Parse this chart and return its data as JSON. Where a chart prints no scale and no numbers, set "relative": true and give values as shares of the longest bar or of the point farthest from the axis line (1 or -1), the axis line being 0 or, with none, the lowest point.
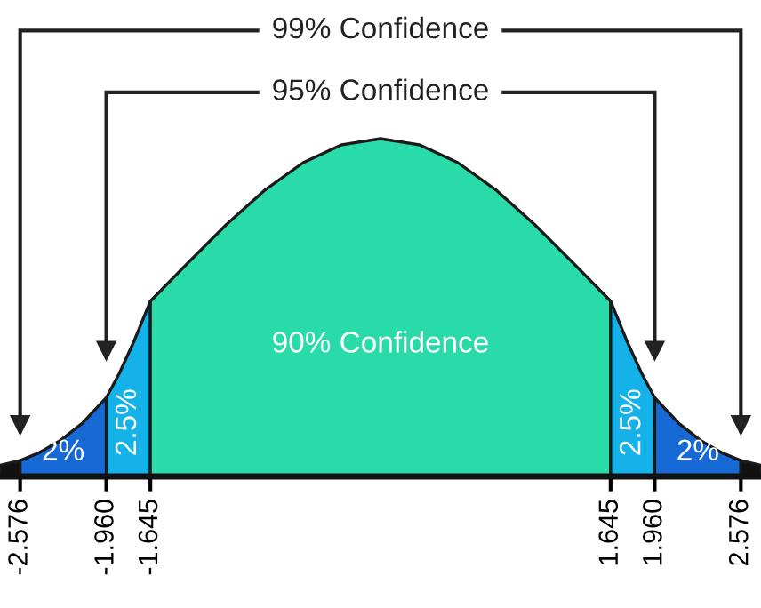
{
  "chart_data": {
    "type": "area",
    "relative": true,
    "xlim": [
      -2.72,
      2.72
    ],
    "xticks": [
      -2.576,
      {
        "value": -1.96,
        "label": "-1.960"
      },
      -1.645,
      1.645,
      {
        "value": 1.96,
        "label": "1.960"
      },
      2.576
    ],
    "tick_labels": "x",
    "grid": false,
    "legend": false,
    "series": [
      {
        "color": "#111111",
        "x": [
          -2.72,
          -2.576
        ],
        "values": [
          0.033,
          0.047
        ]
      },
      {
        "color": "#1769d6",
        "x": [
          -2.576,
          -2.441,
          -2.287,
          -2.133,
          -1.96
        ],
        "values": [
          0.047,
          0.07,
          0.107,
          0.157,
          0.233
        ]
      },
      {
        "color": "#15b2ea",
        "x": [
          -1.96,
          -1.866,
          -1.758,
          -1.645
        ],
        "values": [
          0.233,
          0.306,
          0.404,
          0.519
        ]
      },
      {
        "color": "#29dba8",
        "x": [
          -1.645,
          -1.382,
          -1.106,
          -0.829,
          -0.553,
          -0.276,
          0,
          0.276,
          0.553,
          0.829,
          1.106,
          1.382,
          1.645
        ],
        "values": [
          0.519,
          0.63,
          0.744,
          0.847,
          0.929,
          0.982,
          1,
          0.982,
          0.929,
          0.847,
          0.744,
          0.63,
          0.519
        ]
      },
      {
        "color": "#15b2ea",
        "x": [
          1.645,
          1.758,
          1.866,
          1.96
        ],
        "values": [
          0.519,
          0.404,
          0.306,
          0.233
        ]
      },
      {
        "color": "#1769d6",
        "x": [
          1.96,
          2.133,
          2.287,
          2.441,
          2.576
        ],
        "values": [
          0.233,
          0.157,
          0.107,
          0.07,
          0.047
        ]
      },
      {
        "color": "#111111",
        "x": [
          2.576,
          2.72
        ],
        "values": [
          0.047,
          0.033
        ]
      }
    ],
    "annotations": [
      "99% Confidence",
      "95% Confidence",
      "90% Confidence",
      "2%",
      "2.5%",
      "2.5%",
      "2%"
    ]
  }
}
